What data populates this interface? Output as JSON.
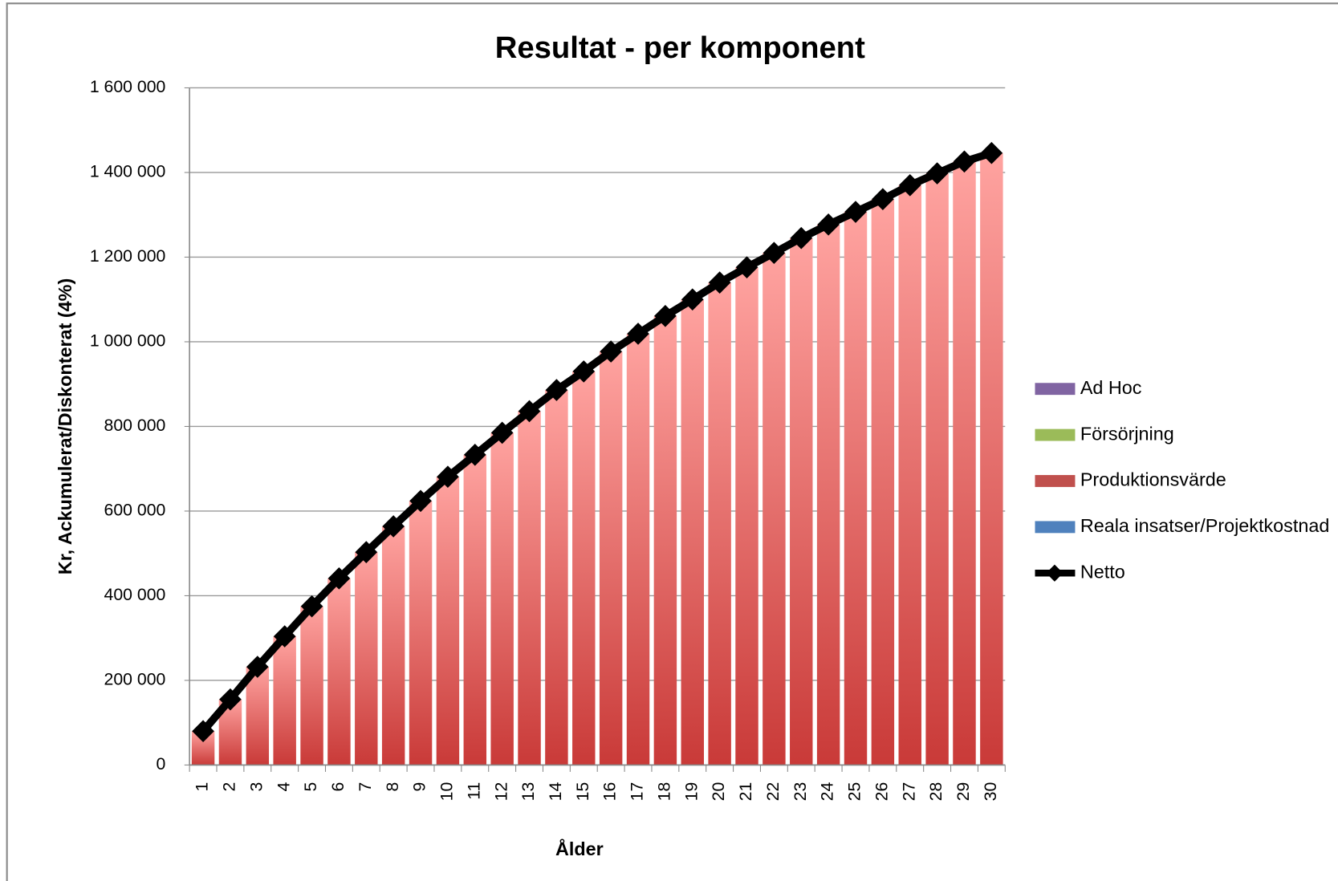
{
  "chart_data": {
    "type": "bar",
    "title": "Resultat - per komponent",
    "x_label": "Ålder",
    "y_label": "Kr, Ackumulerat/Diskonterat (4%)",
    "categories": [
      "1",
      "2",
      "3",
      "4",
      "5",
      "6",
      "7",
      "8",
      "9",
      "10",
      "11",
      "12",
      "13",
      "14",
      "15",
      "16",
      "17",
      "18",
      "19",
      "20",
      "21",
      "22",
      "23",
      "24",
      "25",
      "26",
      "27",
      "28",
      "29",
      "30"
    ],
    "series": [
      {
        "name": "Ad Hoc",
        "color": "#8064a2",
        "type": "bar",
        "values": [
          0,
          0,
          0,
          0,
          0,
          0,
          0,
          0,
          0,
          0,
          0,
          0,
          0,
          0,
          0,
          0,
          0,
          0,
          0,
          0,
          0,
          0,
          0,
          0,
          0,
          0,
          0,
          0,
          0,
          0
        ]
      },
      {
        "name": "Försörjning",
        "color": "#9bbb59",
        "type": "bar",
        "values": [
          0,
          0,
          0,
          0,
          0,
          0,
          0,
          0,
          0,
          0,
          0,
          0,
          0,
          0,
          0,
          0,
          0,
          0,
          0,
          0,
          0,
          0,
          0,
          0,
          0,
          0,
          0,
          0,
          0,
          0
        ]
      },
      {
        "name": "Produktionsvärde",
        "color": "#c0504d",
        "type": "bar",
        "values": [
          80000,
          155000,
          232000,
          304000,
          375000,
          441000,
          503000,
          564000,
          624000,
          681000,
          733000,
          785000,
          836000,
          886000,
          930000,
          977000,
          1019000,
          1061000,
          1100000,
          1140000,
          1176000,
          1210000,
          1245000,
          1277000,
          1307000,
          1337000,
          1370000,
          1398000,
          1426000,
          1446000
        ]
      },
      {
        "name": "Reala insatser/Projektkostnad",
        "color": "#4f81bd",
        "type": "bar",
        "values": [
          0,
          0,
          0,
          0,
          0,
          0,
          0,
          0,
          0,
          0,
          0,
          0,
          0,
          0,
          0,
          0,
          0,
          0,
          0,
          0,
          0,
          0,
          0,
          0,
          0,
          0,
          0,
          0,
          0,
          0
        ]
      },
      {
        "name": "Netto",
        "color": "#000000",
        "type": "line",
        "values": [
          80000,
          155000,
          232000,
          304000,
          375000,
          441000,
          503000,
          564000,
          624000,
          681000,
          733000,
          785000,
          836000,
          886000,
          930000,
          977000,
          1019000,
          1061000,
          1100000,
          1140000,
          1176000,
          1210000,
          1245000,
          1277000,
          1307000,
          1337000,
          1370000,
          1398000,
          1426000,
          1446000
        ]
      }
    ],
    "ylim": [
      0,
      1600000
    ],
    "yticks": [
      0,
      {
        "value": 200000,
        "label": "200 000"
      },
      {
        "value": 400000,
        "label": "400 000"
      },
      {
        "value": 600000,
        "label": "600 000"
      },
      {
        "value": 800000,
        "label": "800 000"
      },
      {
        "value": 1000000,
        "label": "1 000 000"
      },
      {
        "value": 1200000,
        "label": "1 200 000"
      },
      {
        "value": 1400000,
        "label": "1 400 000"
      },
      {
        "value": 1600000,
        "label": "1 600 000"
      }
    ],
    "grid": true,
    "legend": "right"
  }
}
